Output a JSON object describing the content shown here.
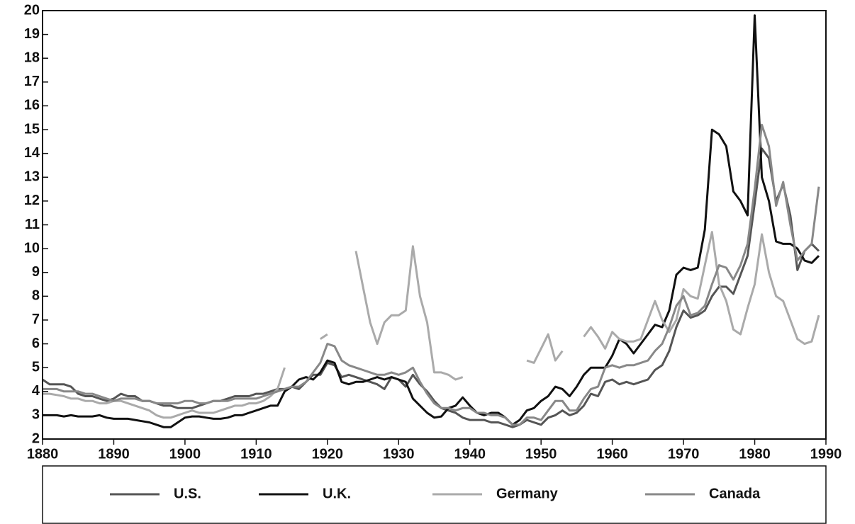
{
  "chart_data": {
    "type": "line",
    "x": [
      1880,
      1881,
      1882,
      1883,
      1884,
      1885,
      1886,
      1887,
      1888,
      1889,
      1890,
      1891,
      1892,
      1893,
      1894,
      1895,
      1896,
      1897,
      1898,
      1899,
      1900,
      1901,
      1902,
      1903,
      1904,
      1905,
      1906,
      1907,
      1908,
      1909,
      1910,
      1911,
      1912,
      1913,
      1914,
      1915,
      1916,
      1917,
      1918,
      1919,
      1920,
      1921,
      1922,
      1923,
      1924,
      1925,
      1926,
      1927,
      1928,
      1929,
      1930,
      1931,
      1932,
      1933,
      1934,
      1935,
      1936,
      1937,
      1938,
      1939,
      1940,
      1941,
      1942,
      1943,
      1944,
      1945,
      1946,
      1947,
      1948,
      1949,
      1950,
      1951,
      1952,
      1953,
      1954,
      1955,
      1956,
      1957,
      1958,
      1959,
      1960,
      1961,
      1962,
      1963,
      1964,
      1965,
      1966,
      1967,
      1968,
      1969,
      1970,
      1971,
      1972,
      1973,
      1974,
      1975,
      1976,
      1977,
      1978,
      1979,
      1980,
      1981,
      1982,
      1983,
      1984,
      1985,
      1986,
      1987,
      1988,
      1989
    ],
    "series": [
      {
        "name": "U.S.",
        "color": "#555555",
        "values": [
          4.5,
          4.3,
          4.3,
          4.3,
          4.2,
          3.9,
          3.8,
          3.8,
          3.7,
          3.6,
          3.7,
          3.9,
          3.8,
          3.8,
          3.6,
          3.6,
          3.5,
          3.4,
          3.4,
          3.3,
          3.3,
          3.3,
          3.4,
          3.5,
          3.6,
          3.6,
          3.7,
          3.8,
          3.8,
          3.8,
          3.9,
          3.9,
          4.0,
          4.1,
          4.1,
          4.2,
          4.1,
          4.4,
          4.7,
          4.7,
          5.2,
          5.1,
          4.6,
          4.7,
          4.6,
          4.5,
          4.4,
          4.3,
          4.1,
          4.6,
          4.5,
          4.2,
          4.7,
          4.3,
          4.0,
          3.6,
          3.3,
          3.2,
          3.1,
          2.9,
          2.8,
          2.8,
          2.8,
          2.7,
          2.7,
          2.6,
          2.5,
          2.6,
          2.8,
          2.7,
          2.6,
          2.9,
          3.0,
          3.2,
          3.0,
          3.1,
          3.4,
          3.9,
          3.8,
          4.4,
          4.5,
          4.3,
          4.4,
          4.3,
          4.4,
          4.5,
          4.9,
          5.1,
          5.7,
          6.7,
          7.4,
          7.1,
          7.2,
          7.4,
          8.0,
          8.4,
          8.4,
          8.1,
          8.9,
          9.7,
          11.9,
          14.2,
          13.8,
          12.0,
          12.7,
          11.4,
          9.1,
          9.9,
          10.2,
          9.9
        ]
      },
      {
        "name": "U.K.",
        "color": "#111111",
        "values": [
          3.0,
          3.0,
          3.0,
          2.95,
          3.0,
          2.95,
          2.95,
          2.95,
          3.0,
          2.9,
          2.85,
          2.85,
          2.85,
          2.8,
          2.75,
          2.7,
          2.6,
          2.5,
          2.5,
          2.7,
          2.9,
          2.95,
          2.95,
          2.9,
          2.85,
          2.85,
          2.9,
          3.0,
          3.0,
          3.1,
          3.2,
          3.3,
          3.4,
          3.4,
          4.0,
          4.2,
          4.5,
          4.6,
          4.5,
          4.8,
          5.3,
          5.2,
          4.4,
          4.3,
          4.4,
          4.4,
          4.5,
          4.6,
          4.5,
          4.6,
          4.5,
          4.4,
          3.7,
          3.4,
          3.1,
          2.9,
          2.95,
          3.3,
          3.4,
          3.75,
          3.4,
          3.1,
          3.0,
          3.1,
          3.1,
          2.9,
          2.6,
          2.8,
          3.2,
          3.3,
          3.6,
          3.8,
          4.2,
          4.1,
          3.8,
          4.2,
          4.7,
          5.0,
          5.0,
          5.0,
          5.5,
          6.2,
          6.0,
          5.6,
          6.0,
          6.4,
          6.8,
          6.7,
          7.4,
          8.9,
          9.2,
          9.1,
          9.2,
          10.8,
          15.0,
          14.8,
          14.3,
          12.4,
          12.0,
          11.4,
          19.8,
          13.0,
          12.0,
          10.3,
          10.2,
          10.2,
          10.0,
          9.5,
          9.4,
          9.7
        ]
      },
      {
        "name": "Germany",
        "color": "#aaaaaa",
        "values": [
          3.9,
          3.9,
          3.85,
          3.8,
          3.7,
          3.7,
          3.6,
          3.6,
          3.5,
          3.5,
          3.6,
          3.6,
          3.5,
          3.4,
          3.3,
          3.2,
          3.0,
          2.9,
          2.9,
          3.0,
          3.1,
          3.2,
          3.1,
          3.1,
          3.1,
          3.2,
          3.3,
          3.4,
          3.4,
          3.5,
          3.5,
          3.6,
          3.8,
          4.1,
          5.0,
          null,
          null,
          null,
          null,
          6.2,
          6.4,
          null,
          null,
          null,
          9.9,
          8.4,
          6.9,
          6.0,
          6.9,
          7.2,
          7.2,
          7.4,
          10.1,
          8.0,
          6.9,
          4.8,
          4.8,
          4.7,
          4.5,
          4.6,
          null,
          null,
          null,
          null,
          null,
          null,
          null,
          null,
          5.3,
          5.2,
          5.8,
          6.4,
          5.3,
          5.7,
          null,
          null,
          6.3,
          6.7,
          6.3,
          5.8,
          6.5,
          6.2,
          6.1,
          6.1,
          6.2,
          7.0,
          7.8,
          7.0,
          6.5,
          7.0,
          8.3,
          8.0,
          7.9,
          9.3,
          10.7,
          8.5,
          7.8,
          6.6,
          6.4,
          7.5,
          8.5,
          10.6,
          9.0,
          8.0,
          7.8,
          7.0,
          6.2,
          6.0,
          6.1,
          7.2
        ]
      },
      {
        "name": "Canada",
        "color": "#888888",
        "values": [
          4.1,
          4.1,
          4.1,
          4.0,
          4.0,
          4.0,
          3.9,
          3.9,
          3.8,
          3.7,
          3.6,
          3.7,
          3.7,
          3.7,
          3.6,
          3.6,
          3.5,
          3.5,
          3.5,
          3.5,
          3.6,
          3.6,
          3.5,
          3.5,
          3.6,
          3.6,
          3.6,
          3.7,
          3.7,
          3.7,
          3.7,
          3.8,
          3.9,
          4.0,
          4.1,
          4.2,
          4.2,
          4.4,
          4.8,
          5.2,
          6.0,
          5.9,
          5.3,
          5.1,
          5.0,
          4.9,
          4.8,
          4.7,
          4.7,
          4.8,
          4.7,
          4.8,
          5.0,
          4.4,
          3.9,
          3.5,
          3.3,
          3.3,
          3.2,
          3.3,
          3.3,
          3.1,
          3.1,
          3.0,
          3.0,
          2.9,
          2.6,
          2.6,
          2.9,
          2.9,
          2.8,
          3.2,
          3.6,
          3.6,
          3.2,
          3.2,
          3.7,
          4.1,
          4.2,
          5.0,
          5.1,
          5.0,
          5.1,
          5.1,
          5.2,
          5.3,
          5.7,
          6.0,
          6.7,
          7.6,
          8.0,
          7.2,
          7.3,
          7.6,
          8.5,
          9.3,
          9.2,
          8.7,
          9.3,
          10.2,
          12.5,
          15.2,
          14.3,
          11.8,
          12.8,
          11.0,
          9.5,
          9.9,
          10.2,
          12.6
        ]
      }
    ],
    "xlim": [
      1880,
      1990
    ],
    "xticks": [
      1880,
      1890,
      1900,
      1910,
      1920,
      1930,
      1940,
      1950,
      1960,
      1970,
      1980,
      1990
    ],
    "ylim": [
      2,
      20
    ],
    "yticks": [
      2,
      3,
      4,
      5,
      6,
      7,
      8,
      9,
      10,
      11,
      12,
      13,
      14,
      15,
      16,
      17,
      18,
      19,
      20
    ],
    "grid": false,
    "legend": "bottom"
  }
}
